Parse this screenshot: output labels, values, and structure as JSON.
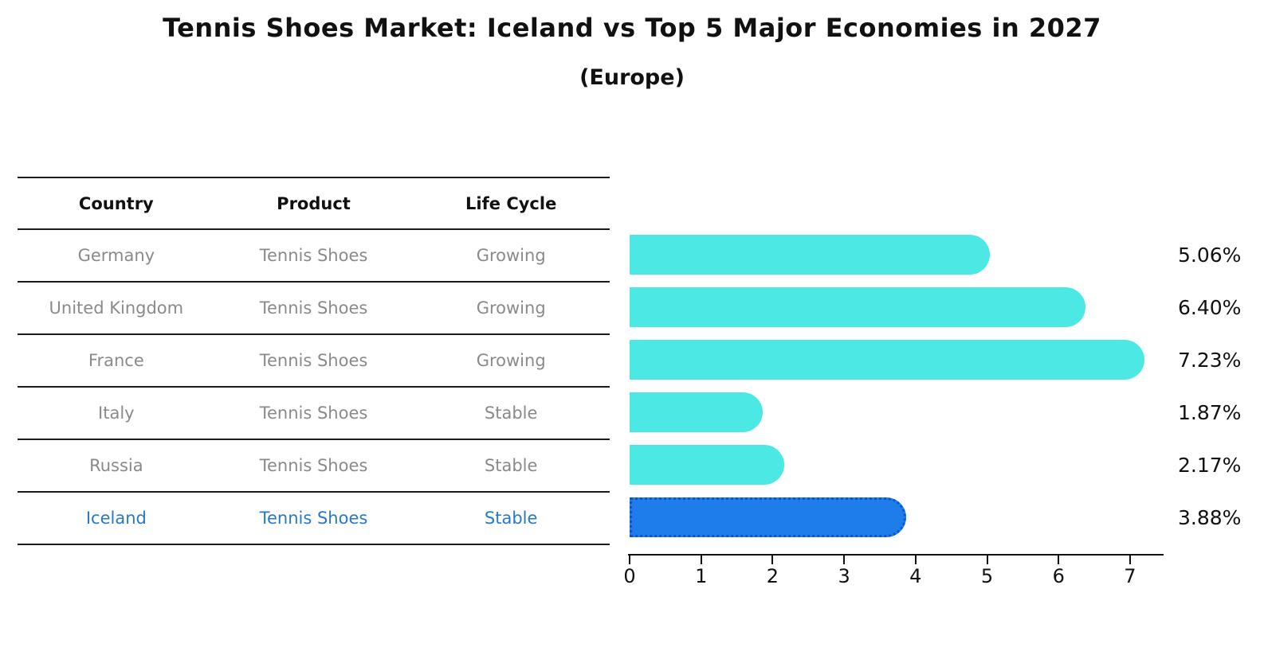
{
  "title": "Tennis Shoes Market: Iceland vs Top 5 Major Economies in 2027",
  "subtitle": "(Europe)",
  "table": {
    "headers": [
      "Country",
      "Product",
      "Life Cycle"
    ],
    "rows": [
      {
        "country": "Germany",
        "product": "Tennis Shoes",
        "life_cycle": "Growing",
        "highlighted": false
      },
      {
        "country": "United Kingdom",
        "product": "Tennis Shoes",
        "life_cycle": "Growing",
        "highlighted": false
      },
      {
        "country": "France",
        "product": "Tennis Shoes",
        "life_cycle": "Growing",
        "highlighted": false
      },
      {
        "country": "Italy",
        "product": "Tennis Shoes",
        "life_cycle": "Stable",
        "highlighted": false
      },
      {
        "country": "Russia",
        "product": "Tennis Shoes",
        "life_cycle": "Stable",
        "highlighted": false
      },
      {
        "country": "Iceland",
        "product": "Tennis Shoes",
        "life_cycle": "Stable",
        "highlighted": true
      }
    ]
  },
  "chart_data": {
    "type": "bar",
    "orientation": "horizontal",
    "title": "Tennis Shoes Market: Iceland vs Top 5 Major Economies in 2027",
    "subtitle": "(Europe)",
    "categories": [
      "Germany",
      "United Kingdom",
      "France",
      "Italy",
      "Russia",
      "Iceland"
    ],
    "values": [
      5.06,
      6.4,
      7.23,
      1.87,
      2.17,
      3.88
    ],
    "value_labels": [
      "5.06%",
      "6.40%",
      "7.23%",
      "1.87%",
      "2.17%",
      "3.88%"
    ],
    "x_ticks": [
      "0",
      "1",
      "2",
      "3",
      "4",
      "5",
      "6",
      "7"
    ],
    "xlim": [
      0,
      7.5
    ],
    "grid": false,
    "legend": "none",
    "bar_color": "#4BE8E4",
    "highlight_index": 5,
    "highlight_color": "#1F7CEB",
    "highlight_border_color": "#0a55cc",
    "highlight_text_color": "#2878c8"
  }
}
